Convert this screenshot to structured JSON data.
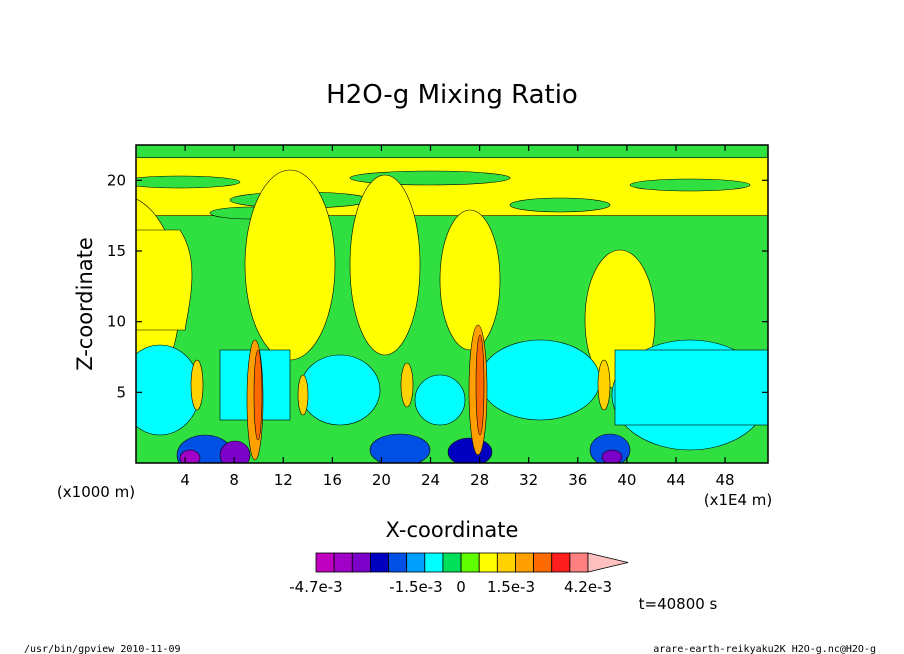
{
  "chart_data": {
    "type": "heatmap",
    "title": "H2O-g Mixing Ratio",
    "xlabel": "X-coordinate",
    "ylabel": "Z-coordinate",
    "x_ticks": [
      "4",
      "8",
      "12",
      "16",
      "20",
      "24",
      "28",
      "32",
      "36",
      "40",
      "44",
      "48"
    ],
    "x_units": "(x1E4 m)",
    "y_ticks": [
      "5",
      "10",
      "15",
      "20"
    ],
    "y_units": "(x1000 m)",
    "xlim": [
      0,
      51.5
    ],
    "ylim": [
      0,
      22.5
    ],
    "colorbar": {
      "labels": [
        "-4.7e-3",
        "-1.5e-3",
        "0",
        "1.5e-3",
        "4.2e-3"
      ],
      "colors": [
        "#c000c0",
        "#a000c8",
        "#7b00c8",
        "#0000c0",
        "#0050e6",
        "#00a0ff",
        "#00ffff",
        "#00e05a",
        "#60ff00",
        "#ffff00",
        "#ffd200",
        "#ffa000",
        "#ff6a00",
        "#ff1e1e",
        "#ff8080"
      ],
      "extend_color": "#ffc0c0"
    },
    "background_level": "#30e040",
    "upper_band_color": "#ffff00",
    "lower_band_color": "#00ffff"
  },
  "time_label": "t=40800 s",
  "footer_left": "/usr/bin/gpview  2010-11-09",
  "footer_right": "arare-earth-reikyaku2K_H2O-g.nc@H2O-g"
}
